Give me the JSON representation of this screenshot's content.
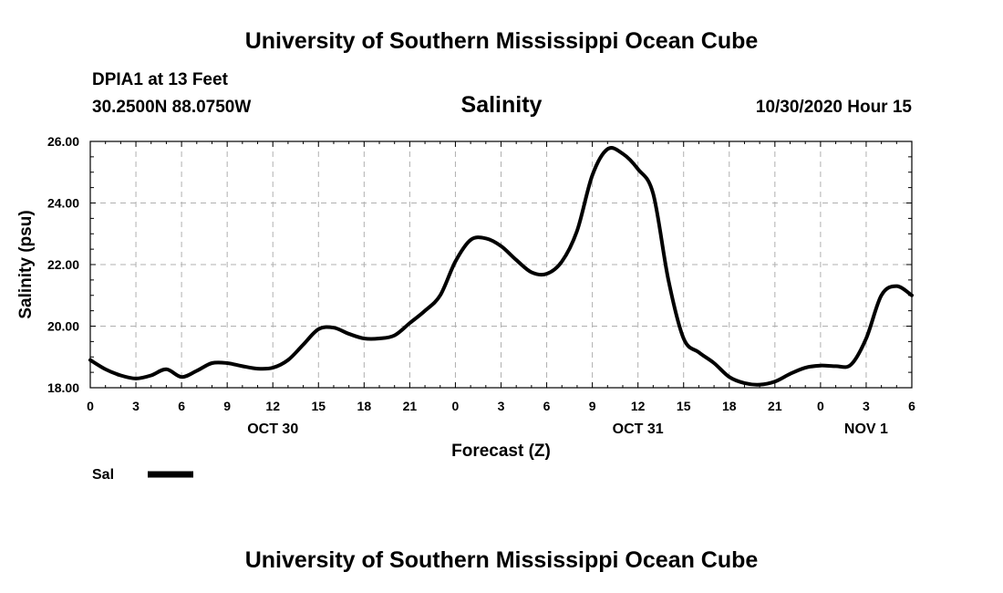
{
  "header": {
    "title_top": "University of Southern Mississippi Ocean Cube",
    "title_bottom": "University of Southern Mississippi Ocean Cube",
    "station": "DPIA1 at 13 Feet",
    "coords": "30.2500N 88.0750W",
    "timestamp": "10/30/2020 Hour 15"
  },
  "chart_data": {
    "type": "line",
    "title": "Salinity",
    "xlabel": "Forecast (Z)",
    "ylabel": "Salinity (psu)",
    "ylim": [
      18,
      26
    ],
    "yticks": [
      "18.00",
      "20.00",
      "22.00",
      "24.00",
      "26.00"
    ],
    "xlim": [
      0,
      54
    ],
    "xtick_labels": [
      "0",
      "3",
      "6",
      "9",
      "12",
      "15",
      "18",
      "21",
      "0",
      "3",
      "6",
      "9",
      "12",
      "15",
      "18",
      "21",
      "0",
      "3",
      "6"
    ],
    "date_labels": [
      {
        "label": "OCT 30",
        "hour": 12
      },
      {
        "label": "OCT 31",
        "hour": 36
      },
      {
        "label": "NOV 1",
        "hour": 51
      }
    ],
    "grid": true,
    "line_color": "#000000",
    "series": [
      {
        "name": "Sal",
        "x": [
          0,
          1,
          2,
          3,
          4,
          5,
          6,
          7,
          8,
          9,
          10,
          11,
          12,
          13,
          14,
          15,
          16,
          17,
          18,
          19,
          20,
          21,
          22,
          23,
          24,
          25,
          26,
          27,
          28,
          29,
          30,
          31,
          32,
          33,
          34,
          35,
          36,
          37,
          38,
          39,
          40,
          41,
          42,
          43,
          44,
          45,
          46,
          47,
          48,
          49,
          50,
          51,
          52,
          53,
          54
        ],
        "y": [
          18.9,
          18.6,
          18.4,
          18.3,
          18.4,
          18.6,
          18.35,
          18.55,
          18.8,
          18.8,
          18.7,
          18.62,
          18.65,
          18.9,
          19.4,
          19.9,
          19.95,
          19.75,
          19.6,
          19.6,
          19.7,
          20.1,
          20.5,
          21.0,
          22.1,
          22.8,
          22.85,
          22.6,
          22.15,
          21.75,
          21.7,
          22.1,
          23.1,
          24.9,
          25.75,
          25.6,
          25.1,
          24.3,
          21.5,
          19.6,
          19.15,
          18.8,
          18.35,
          18.15,
          18.1,
          18.2,
          18.45,
          18.65,
          18.72,
          18.7,
          18.75,
          19.6,
          21.0,
          21.3,
          21.0
        ]
      }
    ],
    "legend": {
      "position": "bottom-left",
      "label": "Sal"
    }
  }
}
